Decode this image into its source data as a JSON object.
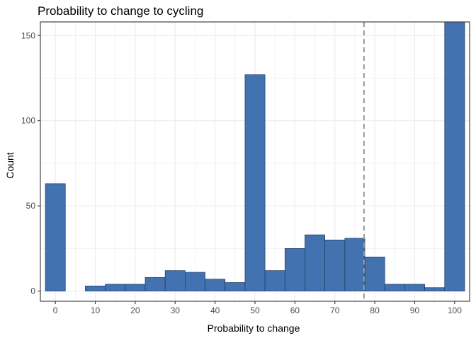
{
  "chart_data": {
    "type": "bar",
    "title": "Probability to change to cycling",
    "xlabel": "Probability to change",
    "ylabel": "Count",
    "bin_width": 5,
    "bins": [
      {
        "center": 0,
        "count": 63
      },
      {
        "center": 5,
        "count": 0
      },
      {
        "center": 10,
        "count": 3
      },
      {
        "center": 15,
        "count": 4
      },
      {
        "center": 20,
        "count": 4
      },
      {
        "center": 25,
        "count": 8
      },
      {
        "center": 30,
        "count": 12
      },
      {
        "center": 35,
        "count": 11
      },
      {
        "center": 40,
        "count": 7
      },
      {
        "center": 45,
        "count": 5
      },
      {
        "center": 50,
        "count": 127
      },
      {
        "center": 55,
        "count": 12
      },
      {
        "center": 60,
        "count": 25
      },
      {
        "center": 65,
        "count": 33
      },
      {
        "center": 70,
        "count": 30
      },
      {
        "center": 75,
        "count": 31
      },
      {
        "center": 80,
        "count": 20
      },
      {
        "center": 85,
        "count": 4
      },
      {
        "center": 90,
        "count": 4
      },
      {
        "center": 95,
        "count": 2
      },
      {
        "center": 100,
        "count": 160
      }
    ],
    "xlim": [
      -3.75,
      103.75
    ],
    "ylim": [
      -6,
      158
    ],
    "x_ticks": [
      0,
      10,
      20,
      30,
      40,
      50,
      60,
      70,
      80,
      90,
      100
    ],
    "y_ticks": [
      0,
      50,
      100,
      150
    ],
    "vline": {
      "x": 77.3,
      "style": "dashed"
    },
    "grid": true,
    "legend": "none",
    "colors": {
      "bar_fill": "#4272b0",
      "bar_stroke": "#1f3a5c",
      "grid": "#ebebeb",
      "vline": "#999999",
      "panel_border": "#333333",
      "tick_text": "#4d4d4d",
      "axis_title": "#000000"
    }
  }
}
